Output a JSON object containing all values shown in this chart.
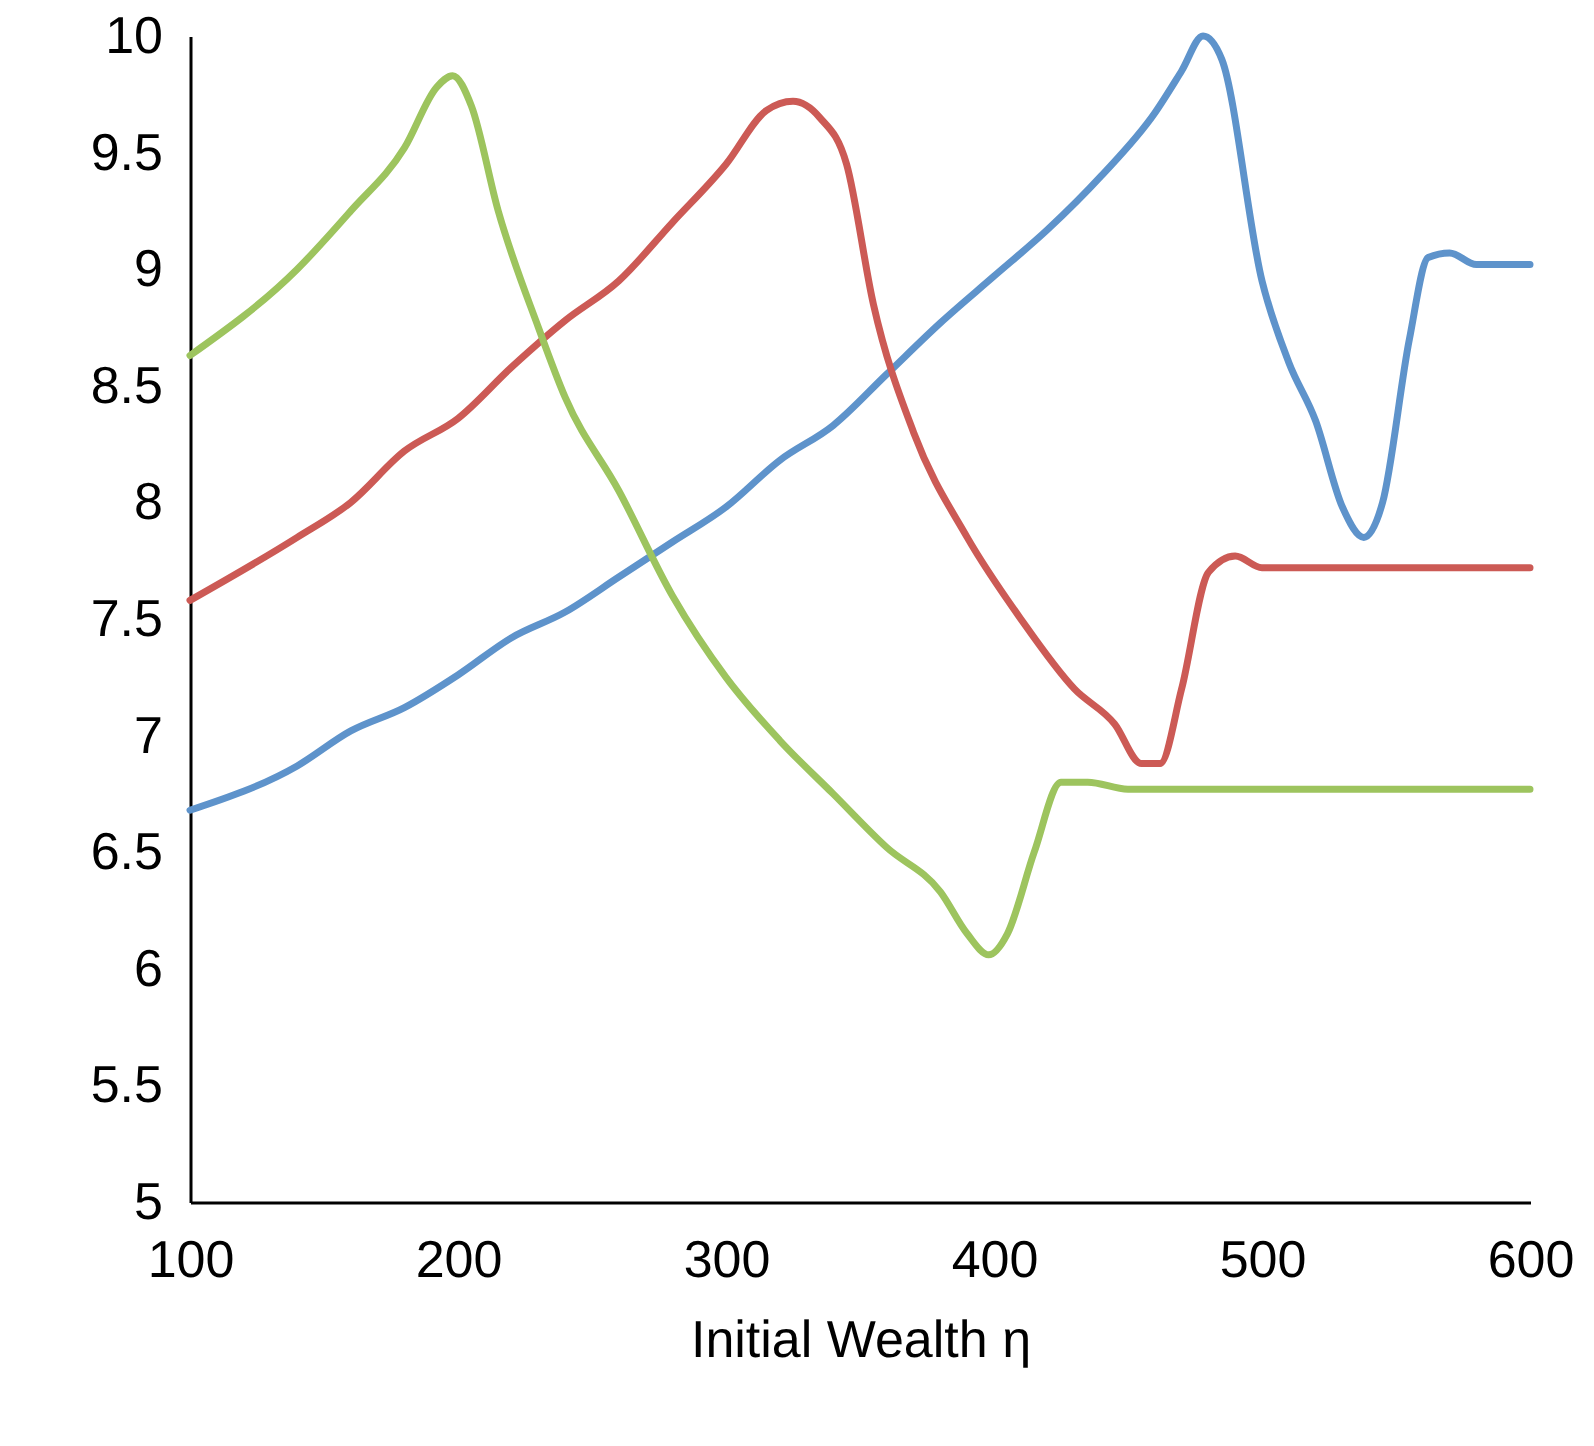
{
  "chart_data": {
    "type": "line",
    "xlabel": "Initial Wealth η",
    "xlim": [
      100,
      600
    ],
    "xticks": [
      100,
      200,
      300,
      400,
      500,
      600
    ],
    "ylim": [
      5,
      10
    ],
    "yticks": [
      5,
      5.5,
      6,
      6.5,
      7,
      7.5,
      8,
      8.5,
      9,
      9.5,
      10
    ],
    "grid": false,
    "marker": "none",
    "line_style": "solid",
    "series": [
      {
        "color": "#5e93cb",
        "x": [
          100,
          140,
          160,
          180,
          200,
          220,
          240,
          260,
          280,
          300,
          320,
          340,
          360,
          380,
          400,
          420,
          440,
          460,
          470,
          478,
          485,
          500,
          510,
          520,
          530,
          538,
          545,
          555,
          562,
          570,
          580,
          600
        ],
        "values": [
          6.68,
          6.87,
          7.02,
          7.12,
          7.26,
          7.42,
          7.53,
          7.68,
          7.83,
          7.98,
          8.18,
          8.33,
          8.55,
          8.77,
          8.97,
          9.17,
          9.4,
          9.67,
          9.85,
          10,
          9.9,
          8.95,
          8.6,
          8.35,
          7.98,
          7.85,
          8,
          8.7,
          9.05,
          9.07,
          9.02,
          9.02
        ]
      },
      {
        "color": "#cc5a55",
        "x": [
          100,
          140,
          160,
          180,
          200,
          220,
          240,
          260,
          280,
          300,
          315,
          325,
          335,
          345,
          355,
          370,
          390,
          410,
          430,
          445,
          455,
          462,
          470,
          480,
          490,
          500,
          600
        ],
        "values": [
          7.58,
          7.85,
          8,
          8.22,
          8.36,
          8.58,
          8.78,
          8.95,
          9.2,
          9.45,
          9.68,
          9.72,
          9.65,
          9.45,
          8.85,
          8.3,
          7.85,
          7.5,
          7.2,
          7.05,
          6.88,
          6.88,
          7.2,
          7.7,
          7.77,
          7.72,
          7.72
        ]
      },
      {
        "color": "#9dc45e",
        "x": [
          100,
          140,
          160,
          180,
          192,
          198,
          205,
          215,
          230,
          240,
          260,
          280,
          300,
          320,
          340,
          360,
          380,
          390,
          398,
          405,
          415,
          425,
          435,
          450,
          600
        ],
        "values": [
          8.63,
          9,
          9.25,
          9.52,
          9.78,
          9.83,
          9.7,
          9.25,
          8.75,
          8.45,
          8.05,
          7.6,
          7.25,
          6.98,
          6.75,
          6.52,
          6.33,
          6.15,
          6.06,
          6.15,
          6.5,
          6.8,
          6.8,
          6.77,
          6.77
        ]
      }
    ]
  }
}
